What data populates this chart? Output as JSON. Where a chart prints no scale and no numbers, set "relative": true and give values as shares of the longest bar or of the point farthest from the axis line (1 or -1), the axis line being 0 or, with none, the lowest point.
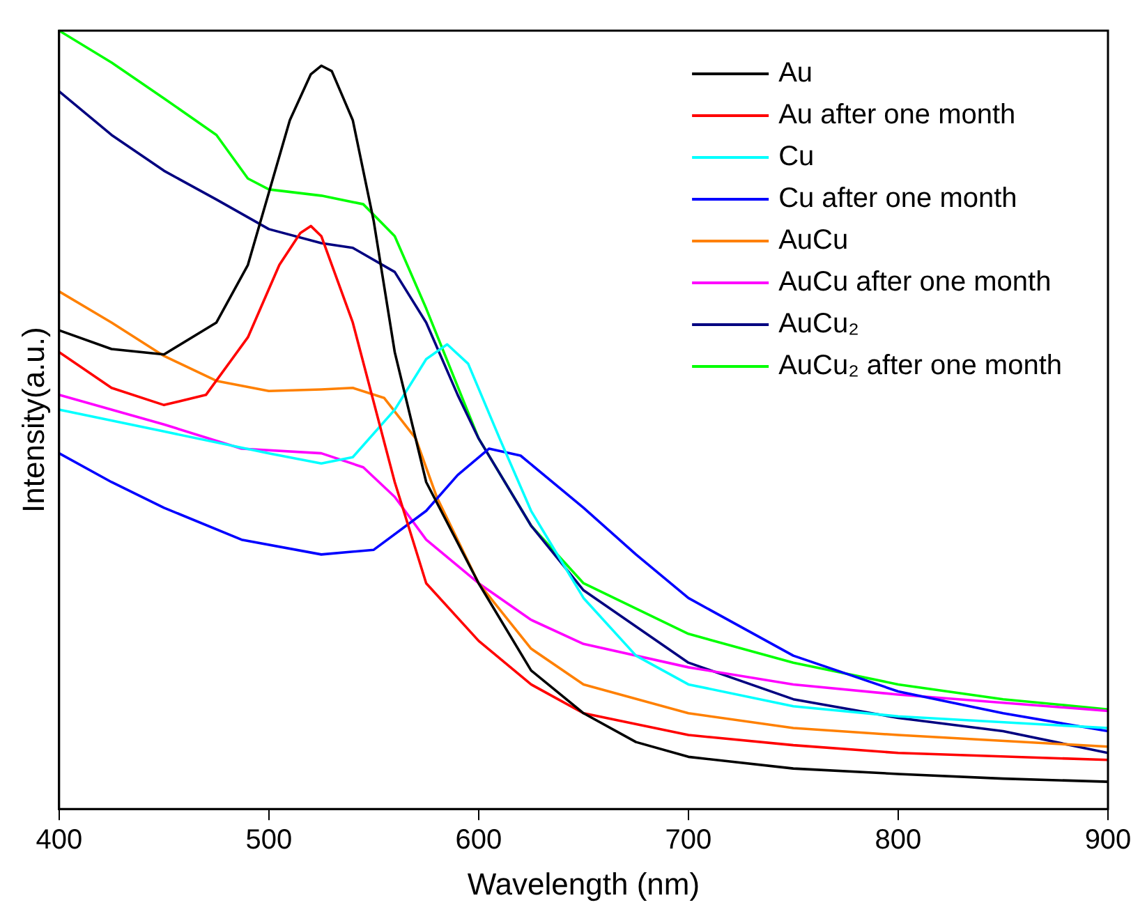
{
  "chart_data": {
    "type": "line",
    "xlabel": "Wavelength (nm)",
    "ylabel": "Intensity(a.u.)",
    "relative": true,
    "xlim": [
      400,
      900
    ],
    "xticks": [
      400,
      500,
      600,
      700,
      800,
      900
    ],
    "legend": "top right",
    "grid": false,
    "marker": "none",
    "line_style": "solid",
    "series": [
      {
        "name": "Au",
        "color": "#000000",
        "x": [
          400,
          425,
          450,
          475,
          490,
          500,
          510,
          520,
          525,
          530,
          540,
          550,
          560,
          575,
          600,
          625,
          650,
          675,
          700,
          750,
          800,
          850,
          900
        ],
        "values": [
          0.615,
          0.591,
          0.584,
          0.625,
          0.699,
          0.792,
          0.885,
          0.944,
          0.955,
          0.948,
          0.885,
          0.755,
          0.587,
          0.42,
          0.29,
          0.178,
          0.123,
          0.086,
          0.067,
          0.052,
          0.045,
          0.039,
          0.035
        ]
      },
      {
        "name": "Au after one month",
        "color": "#ff0000",
        "x": [
          400,
          425,
          450,
          470,
          490,
          505,
          515,
          520,
          525,
          540,
          560,
          575,
          600,
          625,
          650,
          700,
          750,
          800,
          900
        ],
        "values": [
          0.587,
          0.541,
          0.519,
          0.532,
          0.606,
          0.699,
          0.74,
          0.749,
          0.736,
          0.625,
          0.42,
          0.29,
          0.216,
          0.16,
          0.123,
          0.095,
          0.082,
          0.072,
          0.063
        ]
      },
      {
        "name": "Cu",
        "color": "#00ffff",
        "x": [
          400,
          450,
          500,
          525,
          540,
          560,
          575,
          585,
          595,
          610,
          625,
          650,
          675,
          700,
          750,
          800,
          900
        ],
        "values": [
          0.513,
          0.485,
          0.457,
          0.444,
          0.452,
          0.513,
          0.578,
          0.597,
          0.572,
          0.476,
          0.383,
          0.271,
          0.197,
          0.16,
          0.132,
          0.119,
          0.104
        ]
      },
      {
        "name": "Cu after one month",
        "color": "#0000ff",
        "x": [
          400,
          425,
          450,
          487,
          525,
          550,
          575,
          590,
          605,
          620,
          650,
          675,
          700,
          750,
          800,
          850,
          900
        ],
        "values": [
          0.457,
          0.42,
          0.387,
          0.346,
          0.327,
          0.333,
          0.383,
          0.429,
          0.463,
          0.454,
          0.387,
          0.327,
          0.271,
          0.197,
          0.151,
          0.123,
          0.1
        ]
      },
      {
        "name": "AuCu",
        "color": "#ff8000",
        "x": [
          400,
          425,
          450,
          475,
          500,
          525,
          540,
          555,
          570,
          580,
          600,
          625,
          650,
          700,
          750,
          800,
          900
        ],
        "values": [
          0.665,
          0.625,
          0.582,
          0.55,
          0.537,
          0.539,
          0.541,
          0.528,
          0.476,
          0.401,
          0.29,
          0.206,
          0.16,
          0.123,
          0.104,
          0.095,
          0.08
        ]
      },
      {
        "name": "AuCu after one month",
        "color": "#ff00ff",
        "x": [
          400,
          450,
          487,
          525,
          545,
          560,
          575,
          600,
          625,
          650,
          700,
          750,
          800,
          900
        ],
        "values": [
          0.532,
          0.494,
          0.463,
          0.457,
          0.439,
          0.401,
          0.346,
          0.29,
          0.243,
          0.212,
          0.182,
          0.16,
          0.147,
          0.126
        ]
      },
      {
        "name": "AuCu₂",
        "color": "#000080",
        "x": [
          400,
          425,
          450,
          475,
          500,
          525,
          540,
          560,
          575,
          590,
          600,
          625,
          650,
          700,
          750,
          800,
          850,
          900
        ],
        "values": [
          0.922,
          0.866,
          0.82,
          0.783,
          0.745,
          0.727,
          0.721,
          0.69,
          0.625,
          0.532,
          0.476,
          0.364,
          0.281,
          0.188,
          0.141,
          0.117,
          0.1,
          0.072
        ]
      },
      {
        "name": "AuCu₂ after one month",
        "color": "#00ff00",
        "x": [
          400,
          425,
          450,
          475,
          490,
          500,
          525,
          545,
          560,
          575,
          600,
          625,
          650,
          700,
          750,
          800,
          850,
          900
        ],
        "values": [
          1,
          0.959,
          0.913,
          0.866,
          0.81,
          0.796,
          0.788,
          0.777,
          0.736,
          0.643,
          0.476,
          0.364,
          0.29,
          0.225,
          0.188,
          0.16,
          0.141,
          0.128
        ]
      }
    ]
  }
}
